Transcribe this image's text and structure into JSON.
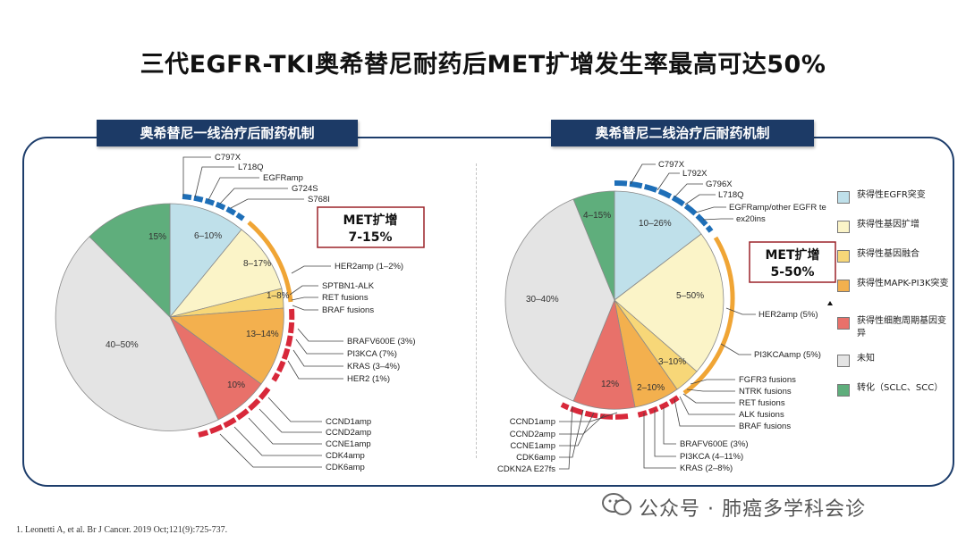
{
  "title": "三代EGFR-TKI奥希替尼耐药后MET扩增发生率最高可达50%",
  "left": {
    "tab": "奥希替尼一线治疗后耐药机制",
    "met_title": "MET扩增",
    "met_value": "7-15%",
    "slice_labels": [
      "6–10%",
      "8–17%",
      "1–8%",
      "13–14%",
      "10%",
      "40–50%",
      "15%"
    ],
    "outer_labels": [
      "C797X",
      "L718Q",
      "EGFRamp",
      "G724S",
      "S768I",
      "HER2amp (1–2%)",
      "SPTBN1-ALK",
      "RET fusions",
      "BRAF fusions",
      "BRAFV600E (3%)",
      "PI3KCA (7%)",
      "KRAS (3–4%)",
      "HER2 (1%)",
      "CCND1amp",
      "CCND2amp",
      "CCNE1amp",
      "CDK4amp",
      "CDK6amp"
    ]
  },
  "right": {
    "tab": "奥希替尼二线治疗后耐药机制",
    "met_title": "MET扩增",
    "met_value": "5-50%",
    "slice_labels": [
      "10–26%",
      "5–50%",
      "3–10%",
      "2–10%",
      "12%",
      "30–40%",
      "4–15%"
    ],
    "outer_labels": [
      "C797X",
      "L792X",
      "G796X",
      "L718Q",
      "EGFRamp/other EGFR te",
      "ex20ins",
      "HER2amp (5%)",
      "PI3KCAamp (5%)",
      "FGFR3 fusions",
      "NTRK fusions",
      "RET fusions",
      "ALK fusions",
      "BRAF fusions",
      "BRAFV600E (3%)",
      "PI3KCA (4–11%)",
      "KRAS (2–8%)",
      "CCND1amp",
      "CCND2amp",
      "CCNE1amp",
      "CDK6amp",
      "CDKN2A E27fs"
    ]
  },
  "legend": [
    {
      "label": "获得性EGFR突变",
      "color": "#bfe0ea"
    },
    {
      "label": "获得性基因扩增",
      "color": "#fbf4c8"
    },
    {
      "label": "获得性基因融合",
      "color": "#f7d778"
    },
    {
      "label": "获得性MAPK-PI3K突变",
      "color": "#f3b04e"
    },
    {
      "label": "获得性细胞周期基因变异",
      "color": "#e8716a"
    },
    {
      "label": "未知",
      "color": "#e4e4e4"
    },
    {
      "label": "转化（SCLC、SCC）",
      "color": "#5fae7c"
    }
  ],
  "reference": "1. Leonetti A, et al. Br J Cancer. 2019 Oct;121(9):725-737.",
  "watermark": "公众号 · 肺癌多学科会诊",
  "icons": {
    "arrow": "triangle-marker-icon",
    "wechat": "wechat-icon"
  }
}
